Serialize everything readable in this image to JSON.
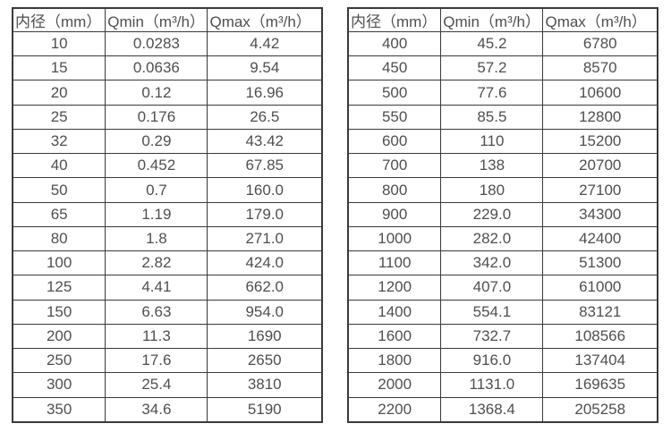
{
  "tables": [
    {
      "name": "small-diameter-flow-range",
      "columns": [
        "内径（mm）",
        "Qmin（m³/h）",
        "Qmax（m³/h）"
      ],
      "rows": [
        [
          "10",
          "0.0283",
          "4.42"
        ],
        [
          "15",
          "0.0636",
          "9.54"
        ],
        [
          "20",
          "0.12",
          "16.96"
        ],
        [
          "25",
          "0.176",
          "26.5"
        ],
        [
          "32",
          "0.29",
          "43.42"
        ],
        [
          "40",
          "0.452",
          "67.85"
        ],
        [
          "50",
          "0.7",
          "160.0"
        ],
        [
          "65",
          "1.19",
          "179.0"
        ],
        [
          "80",
          "1.8",
          "271.0"
        ],
        [
          "100",
          "2.82",
          "424.0"
        ],
        [
          "125",
          "4.41",
          "662.0"
        ],
        [
          "150",
          "6.63",
          "954.0"
        ],
        [
          "200",
          "11.3",
          "1690"
        ],
        [
          "250",
          "17.6",
          "2650"
        ],
        [
          "300",
          "25.4",
          "3810"
        ],
        [
          "350",
          "34.6",
          "5190"
        ]
      ]
    },
    {
      "name": "large-diameter-flow-range",
      "columns": [
        "内径（mm）",
        "Qmin（m³/h）",
        "Qmax（m³/h）"
      ],
      "rows": [
        [
          "400",
          "45.2",
          "6780"
        ],
        [
          "450",
          "57.2",
          "8570"
        ],
        [
          "500",
          "77.6",
          "10600"
        ],
        [
          "550",
          "85.5",
          "12800"
        ],
        [
          "600",
          "110",
          "15200"
        ],
        [
          "700",
          "138",
          "20700"
        ],
        [
          "800",
          "180",
          "27100"
        ],
        [
          "900",
          "229.0",
          "34300"
        ],
        [
          "1000",
          "282.0",
          "42400"
        ],
        [
          "1100",
          "342.0",
          "51300"
        ],
        [
          "1200",
          "407.0",
          "61000"
        ],
        [
          "1400",
          "554.1",
          "83121"
        ],
        [
          "1600",
          "732.7",
          "108566"
        ],
        [
          "1800",
          "916.0",
          "137404"
        ],
        [
          "2000",
          "1131.0",
          "169635"
        ],
        [
          "2200",
          "1368.4",
          "205258"
        ]
      ]
    }
  ],
  "colors": {
    "border": "#3a3a3a",
    "text": "#4f4f4f",
    "background": "#ffffff"
  }
}
